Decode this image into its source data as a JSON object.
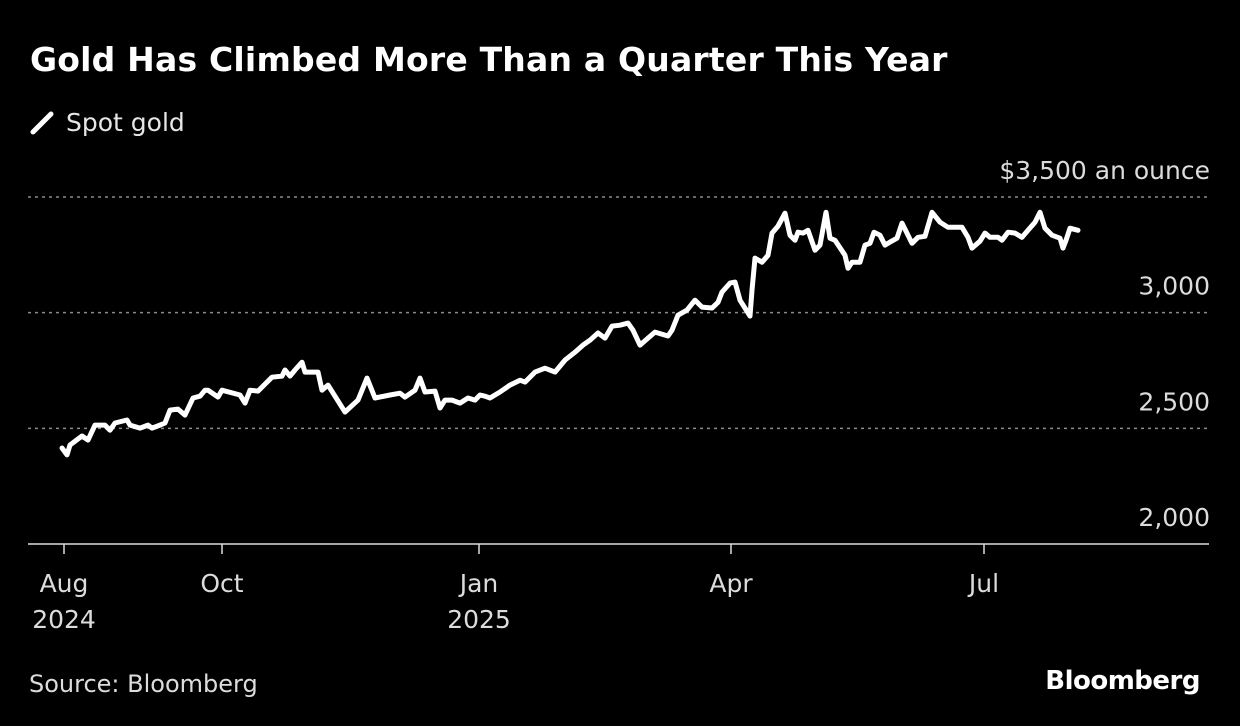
{
  "title": "Gold Has Climbed More Than a Quarter This Year",
  "legend": {
    "label": "Spot gold",
    "icon": "line-slash-icon"
  },
  "source": "Source: Bloomberg",
  "logo": "Bloomberg",
  "colors": {
    "background": "#000000",
    "line": "#ffffff",
    "grid": "#8a8a8a",
    "text": "#dcdcdc"
  },
  "chart_data": {
    "type": "line",
    "title": "Gold Has Climbed More Than a Quarter This Year",
    "xlabel": "",
    "ylabel": "$ an ounce",
    "x_units": "trading days since Aug 1, 2024 (approx.)",
    "xlim": [
      -8.5,
      286
    ],
    "ylim": [
      2000,
      3500
    ],
    "grid": true,
    "legend_position": "top-left",
    "y_ticks": [
      {
        "value": 2000,
        "label": "2,000"
      },
      {
        "value": 2500,
        "label": "2,500"
      },
      {
        "value": 3000,
        "label": "3,000"
      },
      {
        "value": 3500,
        "label": "$3,500 an ounce"
      }
    ],
    "x_ticks": [
      {
        "value": 0,
        "label": "Aug",
        "sublabel": "2024"
      },
      {
        "value": 39.5,
        "label": "Oct",
        "sublabel": ""
      },
      {
        "value": 103.75,
        "label": "Jan",
        "sublabel": "2025"
      },
      {
        "value": 166.75,
        "label": "Apr",
        "sublabel": ""
      },
      {
        "value": 230,
        "label": "Jul",
        "sublabel": ""
      }
    ],
    "series": [
      {
        "name": "Spot gold",
        "x": [
          -0.5,
          0.75,
          1.5,
          4.5,
          6,
          7.75,
          10.25,
          11.5,
          12.75,
          15.75,
          16.5,
          19,
          21,
          22,
          24,
          25.25,
          26.5,
          28.5,
          30.25,
          32.25,
          34,
          35.25,
          36,
          38.5,
          39.5,
          44,
          45.25,
          46.5,
          48.5,
          50.25,
          52,
          54.5,
          55.25,
          56.5,
          57.75,
          59.5,
          60.25,
          63.5,
          64.5,
          66,
          70.25,
          73.5,
          75.75,
          77.75,
          81.5,
          84,
          85.25,
          87.75,
          89,
          90.25,
          92.75,
          94,
          95.25,
          97,
          99,
          101,
          102.75,
          104,
          105.25,
          106.5,
          109,
          111.5,
          114,
          115.25,
          117.75,
          120.25,
          122.75,
          125.25,
          127.75,
          129.75,
          131.5,
          133.5,
          135.25,
          137,
          139,
          141,
          142.25,
          144,
          146,
          147.75,
          151,
          152,
          153.5,
          155.75,
          157.75,
          159.5,
          162,
          163.5,
          164.5,
          166.5,
          167.75,
          169,
          171.5,
          172,
          172.75,
          174.5,
          176,
          177,
          178.5,
          180.25,
          181.5,
          182.75,
          183.5,
          184.75,
          186,
          187.75,
          189,
          190.5,
          191.5,
          192.75,
          195.25,
          196,
          197,
          199,
          200.25,
          201.5,
          202.5,
          204,
          205.25,
          206.5,
          208.25,
          209.5,
          211,
          212,
          213.5,
          215.25,
          217,
          219,
          221,
          223.5,
          224.5,
          226,
          227,
          229,
          230.25,
          231.5,
          233.5,
          234.5,
          236,
          237.75,
          239.5,
          241,
          242.75,
          244,
          245.25,
          247,
          249,
          249.75,
          250.5,
          251.5,
          253.5
        ],
        "values": [
          2415,
          2385,
          2428,
          2467,
          2449,
          2514,
          2514,
          2492,
          2523,
          2536,
          2514,
          2501,
          2514,
          2501,
          2514,
          2523,
          2579,
          2583,
          2557,
          2631,
          2639,
          2665,
          2665,
          2635,
          2665,
          2644,
          2609,
          2665,
          2661,
          2691,
          2721,
          2726,
          2752,
          2726,
          2752,
          2786,
          2743,
          2743,
          2665,
          2687,
          2570,
          2622,
          2717,
          2631,
          2644,
          2652,
          2635,
          2665,
          2717,
          2657,
          2661,
          2588,
          2622,
          2622,
          2609,
          2631,
          2622,
          2644,
          2639,
          2631,
          2657,
          2687,
          2708,
          2700,
          2743,
          2760,
          2743,
          2795,
          2829,
          2860,
          2881,
          2912,
          2890,
          2942,
          2946,
          2955,
          2924,
          2860,
          2890,
          2916,
          2899,
          2924,
          2989,
          3011,
          3054,
          3024,
          3020,
          3045,
          3089,
          3128,
          3132,
          3054,
          2985,
          3097,
          3236,
          3218,
          3248,
          3344,
          3374,
          3430,
          3335,
          3313,
          3348,
          3344,
          3356,
          3270,
          3292,
          3434,
          3322,
          3313,
          3248,
          3192,
          3218,
          3218,
          3292,
          3300,
          3348,
          3335,
          3292,
          3305,
          3322,
          3387,
          3335,
          3300,
          3326,
          3330,
          3434,
          3391,
          3369,
          3369,
          3369,
          3326,
          3279,
          3309,
          3344,
          3326,
          3326,
          3313,
          3348,
          3344,
          3326,
          3356,
          3391,
          3434,
          3365,
          3335,
          3322,
          3279,
          3313,
          3365,
          3356
        ]
      }
    ]
  }
}
